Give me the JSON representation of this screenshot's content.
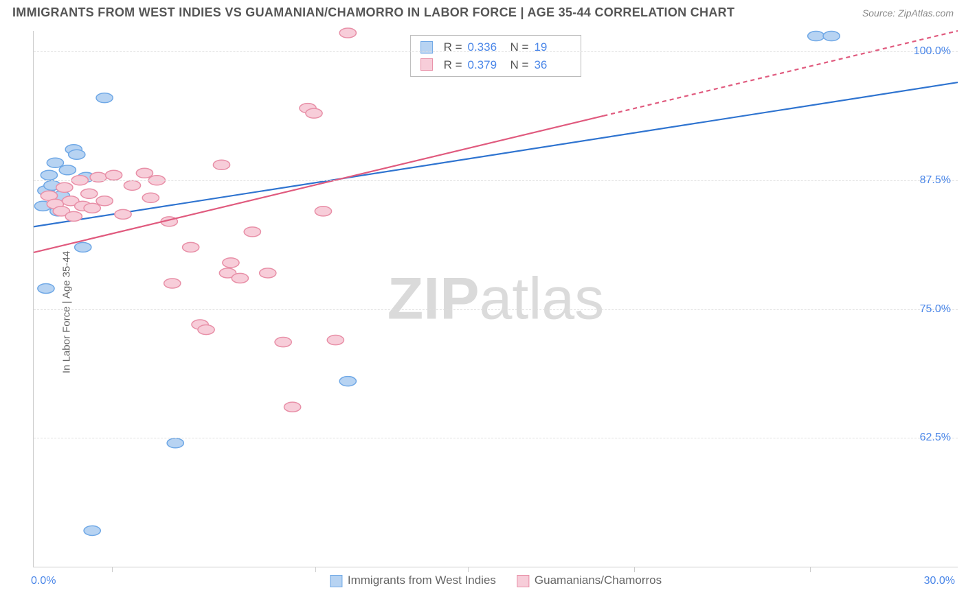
{
  "title": "IMMIGRANTS FROM WEST INDIES VS GUAMANIAN/CHAMORRO IN LABOR FORCE | AGE 35-44 CORRELATION CHART",
  "source": "Source: ZipAtlas.com",
  "y_axis_label": "In Labor Force | Age 35-44",
  "watermark": {
    "bold": "ZIP",
    "rest": "atlas"
  },
  "chart": {
    "type": "scatter",
    "background_color": "#ffffff",
    "grid_color": "#dddddd",
    "grid_dash": "4,4",
    "axis_color": "#cccccc",
    "xlim": [
      0.0,
      30.0
    ],
    "ylim": [
      50.0,
      102.0
    ],
    "ytick_values": [
      62.5,
      75.0,
      87.5,
      100.0
    ],
    "ytick_labels": [
      "62.5%",
      "75.0%",
      "87.5%",
      "100.0%"
    ],
    "xtick_positions_pct": [
      8.5,
      30.5,
      47.0,
      65.0,
      84.0
    ],
    "xlim_labels": {
      "left": "0.0%",
      "right": "30.0%"
    },
    "tick_label_color": "#4a86e8",
    "tick_label_fontsize": 16,
    "axis_label_color": "#666666",
    "axis_label_fontsize": 15,
    "marker_radius": 9,
    "marker_stroke_width": 1.5,
    "trend_line_width": 2.2,
    "trend_dash_pattern": "6,5",
    "series": [
      {
        "key": "west_indies",
        "label": "Immigrants from West Indies",
        "fill": "#b7d3f2",
        "stroke": "#6fa8e6",
        "line_color": "#2f74d0",
        "R": "0.336",
        "N": "19",
        "trend": {
          "x1": 0.0,
          "y1": 83.0,
          "x2": 30.0,
          "y2": 97.0,
          "dash_from_x": null
        },
        "points": [
          {
            "x": 0.3,
            "y": 85.0
          },
          {
            "x": 0.4,
            "y": 86.5
          },
          {
            "x": 0.5,
            "y": 88.0
          },
          {
            "x": 0.6,
            "y": 87.0
          },
          {
            "x": 0.7,
            "y": 89.2
          },
          {
            "x": 0.9,
            "y": 86.0
          },
          {
            "x": 1.1,
            "y": 88.5
          },
          {
            "x": 1.3,
            "y": 90.5
          },
          {
            "x": 1.4,
            "y": 90.0
          },
          {
            "x": 1.7,
            "y": 87.8
          },
          {
            "x": 2.3,
            "y": 95.5
          },
          {
            "x": 0.4,
            "y": 77.0
          },
          {
            "x": 1.6,
            "y": 81.0
          },
          {
            "x": 4.6,
            "y": 62.0
          },
          {
            "x": 10.2,
            "y": 68.0
          },
          {
            "x": 1.9,
            "y": 53.5
          },
          {
            "x": 25.4,
            "y": 101.5
          },
          {
            "x": 25.9,
            "y": 101.5
          },
          {
            "x": 0.8,
            "y": 84.5
          }
        ]
      },
      {
        "key": "guamanian",
        "label": "Guamanians/Chamorros",
        "fill": "#f7cdd9",
        "stroke": "#e88fa7",
        "line_color": "#e05a7e",
        "R": "0.379",
        "N": "36",
        "trend": {
          "x1": 0.0,
          "y1": 80.5,
          "x2": 30.0,
          "y2": 102.0,
          "dash_from_x": 18.5
        },
        "points": [
          {
            "x": 0.5,
            "y": 86.0
          },
          {
            "x": 0.7,
            "y": 85.2
          },
          {
            "x": 0.9,
            "y": 84.5
          },
          {
            "x": 1.0,
            "y": 86.8
          },
          {
            "x": 1.2,
            "y": 85.5
          },
          {
            "x": 1.3,
            "y": 84.0
          },
          {
            "x": 1.5,
            "y": 87.5
          },
          {
            "x": 1.6,
            "y": 85.0
          },
          {
            "x": 1.8,
            "y": 86.2
          },
          {
            "x": 1.9,
            "y": 84.8
          },
          {
            "x": 2.1,
            "y": 87.8
          },
          {
            "x": 2.3,
            "y": 85.5
          },
          {
            "x": 2.6,
            "y": 88.0
          },
          {
            "x": 2.9,
            "y": 84.2
          },
          {
            "x": 3.2,
            "y": 87.0
          },
          {
            "x": 3.6,
            "y": 88.2
          },
          {
            "x": 3.8,
            "y": 85.8
          },
          {
            "x": 4.4,
            "y": 83.5
          },
          {
            "x": 4.5,
            "y": 77.5
          },
          {
            "x": 5.1,
            "y": 81.0
          },
          {
            "x": 5.4,
            "y": 73.5
          },
          {
            "x": 5.6,
            "y": 73.0
          },
          {
            "x": 6.1,
            "y": 89.0
          },
          {
            "x": 6.3,
            "y": 78.5
          },
          {
            "x": 6.4,
            "y": 79.5
          },
          {
            "x": 6.7,
            "y": 78.0
          },
          {
            "x": 7.1,
            "y": 82.5
          },
          {
            "x": 7.6,
            "y": 78.5
          },
          {
            "x": 8.1,
            "y": 71.8
          },
          {
            "x": 8.4,
            "y": 65.5
          },
          {
            "x": 8.9,
            "y": 94.5
          },
          {
            "x": 9.1,
            "y": 94.0
          },
          {
            "x": 9.4,
            "y": 84.5
          },
          {
            "x": 9.8,
            "y": 72.0
          },
          {
            "x": 10.2,
            "y": 101.8
          },
          {
            "x": 4.0,
            "y": 87.5
          }
        ]
      }
    ]
  }
}
